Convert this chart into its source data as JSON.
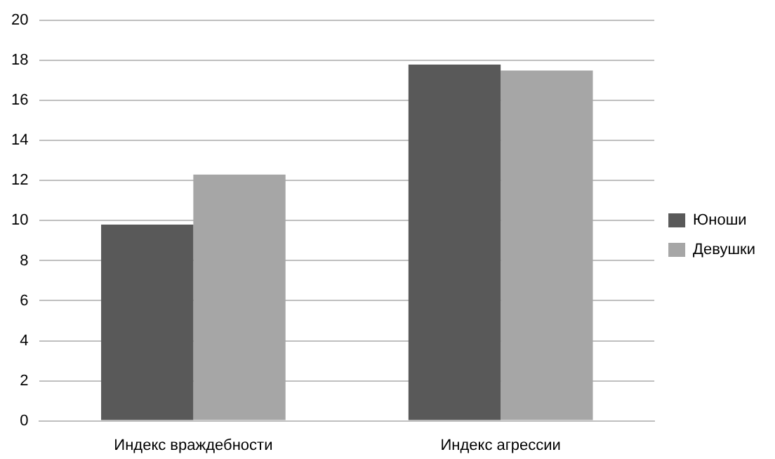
{
  "chart_data": {
    "type": "bar",
    "categories": [
      "Индекс враждебности",
      "Индекс агрессии"
    ],
    "series": [
      {
        "name": "Юноши",
        "color": "#595959",
        "values": [
          9.8,
          17.8
        ]
      },
      {
        "name": "Девушки",
        "color": "#a6a6a6",
        "values": [
          12.3,
          17.5
        ]
      }
    ],
    "ylim": [
      0,
      20
    ],
    "yticks": [
      0,
      2,
      4,
      6,
      8,
      10,
      12,
      14,
      16,
      18,
      20
    ],
    "grid": "y",
    "legend": "right"
  }
}
